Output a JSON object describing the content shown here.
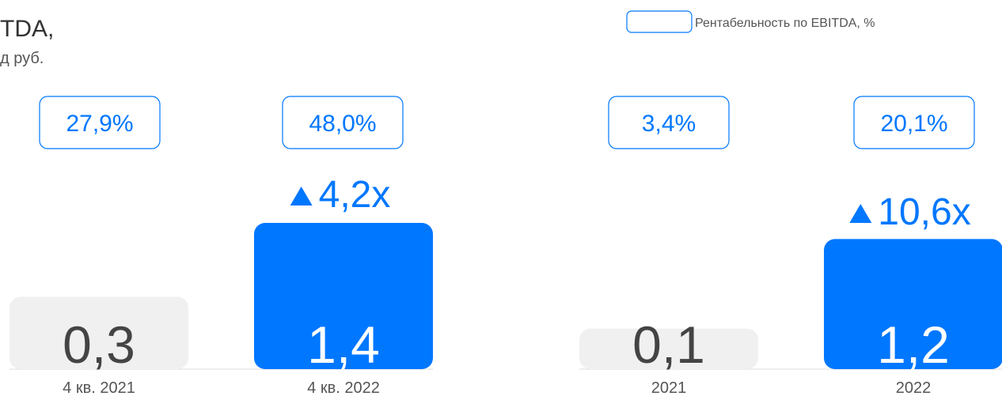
{
  "title": "TDA,",
  "subtitle": "д руб.",
  "legend": "Рентабельность по EBITDA, %",
  "chart_data": [
    {
      "type": "bar",
      "categories": [
        "4 кв. 2021",
        "4 кв. 2022"
      ],
      "values": [
        0.3,
        1.4
      ],
      "value_labels": [
        "0,3",
        "1,4"
      ],
      "colors": [
        "#f0f0f0",
        "#0077ff"
      ],
      "margins": {
        "values": [
          27.9,
          48.0
        ],
        "value_labels": [
          "27,9%",
          "48,0%"
        ]
      },
      "growth": {
        "value": 4.2,
        "label": "4,2x"
      }
    },
    {
      "type": "bar",
      "categories": [
        "2021",
        "2022"
      ],
      "values": [
        0.1,
        1.2
      ],
      "value_labels": [
        "0,1",
        "1,2"
      ],
      "colors": [
        "#f0f0f0",
        "#0077ff"
      ],
      "margins": {
        "values": [
          3.4,
          20.1
        ],
        "value_labels": [
          "3,4%",
          "20,1%"
        ]
      },
      "growth": {
        "value": 10.6,
        "label": "10,6x"
      }
    }
  ]
}
